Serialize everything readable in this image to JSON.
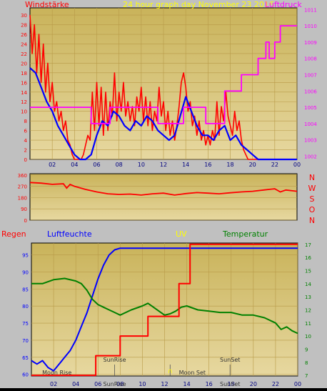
{
  "colors": {
    "wind_red": "#ff0000",
    "wind_blue": "#0000ff",
    "pressure_magenta": "#ff00ff",
    "title_yellow": "#ffff00",
    "humidity_blue": "#0000ff",
    "uv_yellow": "#ffff00",
    "temp_green": "#008000",
    "rain_red": "#ff0000",
    "dir_red": "#ff0000",
    "panel_bg": "#d2b45c"
  },
  "chart_data": [
    {
      "type": "line",
      "title": "24 hour graph day  November 23 2016",
      "left_label": "Windstärke",
      "right_label": "Luftdruck",
      "xtick_labels": [
        "02",
        "04",
        "06",
        "08",
        "10",
        "12",
        "14",
        "16",
        "18",
        "20",
        "22",
        "00"
      ],
      "yleft_ticks": [
        0,
        2,
        4,
        6,
        8,
        10,
        12,
        14,
        16,
        18,
        20,
        22,
        24,
        26,
        28,
        30
      ],
      "yright_ticks": [
        1002,
        1003,
        1004,
        1005,
        1006,
        1007,
        1008,
        1009,
        1010,
        1011
      ],
      "xlim": [
        0,
        24
      ],
      "ylim_left": [
        0,
        31.5
      ],
      "ylim_right": [
        1001.8,
        1011.1
      ],
      "series": [
        {
          "axis": "left",
          "style": "gust",
          "x": [
            0,
            0.2,
            0.4,
            0.6,
            0.8,
            1,
            1.2,
            1.4,
            1.6,
            1.8,
            2,
            2.2,
            2.4,
            2.6,
            2.8,
            3,
            3.2,
            3.4,
            3.6,
            3.8,
            4,
            4.2,
            4.4,
            4.6,
            4.8,
            5,
            5.2,
            5.4,
            5.6,
            5.8,
            6,
            6.2,
            6.4,
            6.6,
            6.8,
            7,
            7.2,
            7.4,
            7.6,
            7.8,
            8,
            8.2,
            8.4,
            8.6,
            8.8,
            9,
            9.2,
            9.4,
            9.6,
            9.8,
            10,
            10.2,
            10.4,
            10.6,
            10.8,
            11,
            11.2,
            11.4,
            11.6,
            11.8,
            12,
            12.2,
            12.4,
            12.6,
            12.8,
            13,
            13.2,
            13.4,
            13.6,
            13.8,
            14,
            14.2,
            14.4,
            14.6,
            14.8,
            15,
            15.2,
            15.4,
            15.6,
            15.8,
            16,
            16.2,
            16.4,
            16.6,
            16.8,
            17,
            17.2,
            17.4,
            17.6,
            17.8,
            18,
            18.2,
            18.4,
            18.6,
            18.8,
            19,
            19.2,
            19.4,
            19.6,
            19.8,
            20,
            20.2,
            20.4,
            20.6,
            20.8,
            21,
            21.2,
            21.4,
            21.6,
            21.8,
            22,
            22.2,
            22.4,
            22.6,
            22.8,
            23,
            23.2,
            23.4,
            23.6,
            23.8,
            24
          ],
          "values": [
            30,
            22,
            28,
            18,
            26,
            16,
            24,
            14,
            20,
            12,
            16,
            10,
            12,
            8,
            10,
            6,
            8,
            4,
            3,
            1,
            0,
            0,
            0,
            0,
            1,
            3,
            5,
            4,
            14,
            6,
            16,
            7,
            15,
            5,
            14,
            6,
            12,
            9,
            18,
            8,
            14,
            10,
            16,
            9,
            12,
            8,
            11,
            7,
            13,
            10,
            15,
            8,
            13,
            7,
            12,
            6,
            10,
            8,
            15,
            9,
            12,
            6,
            10,
            5,
            8,
            4,
            7,
            11,
            16,
            18,
            15,
            10,
            12,
            7,
            9,
            5,
            8,
            4,
            6,
            3,
            5,
            3,
            6,
            4,
            12,
            5,
            11,
            8,
            14,
            9,
            7,
            5,
            10,
            6,
            8,
            4,
            2,
            1,
            0,
            0,
            0,
            0,
            0,
            0,
            0,
            0,
            0,
            0,
            0,
            0,
            0,
            0,
            0,
            0,
            0,
            0,
            0,
            0,
            0,
            0,
            0
          ]
        },
        {
          "axis": "left",
          "style": "average",
          "x": [
            0,
            0.5,
            1,
            1.5,
            2,
            2.5,
            3,
            3.5,
            4,
            4.5,
            5,
            5.5,
            6,
            6.5,
            7,
            7.5,
            8,
            8.5,
            9,
            9.5,
            10,
            10.5,
            11,
            11.5,
            12,
            12.5,
            13,
            13.5,
            14,
            14.5,
            15,
            15.5,
            16,
            16.5,
            17,
            17.5,
            18,
            18.5,
            19,
            19.5,
            20,
            20.5,
            21,
            21.5,
            22,
            22.5,
            23,
            23.5,
            24
          ],
          "values": [
            19,
            18,
            15,
            12,
            10,
            7,
            5,
            3,
            1,
            0,
            0,
            1,
            5,
            8,
            7,
            10,
            9,
            7,
            6,
            8,
            7,
            9,
            8,
            6,
            5,
            4,
            5,
            9,
            13,
            10,
            7,
            5,
            5,
            4,
            6,
            7,
            4,
            5,
            3,
            2,
            1,
            0,
            0,
            0,
            0,
            0,
            0,
            0,
            0
          ]
        },
        {
          "axis": "right",
          "style": "pressure",
          "x": [
            0,
            5.5,
            5.5,
            7.2,
            7.2,
            11.5,
            11.5,
            13.8,
            13.8,
            15.8,
            15.8,
            17.5,
            17.5,
            19,
            19,
            20.5,
            20.5,
            21.2,
            21.2,
            21.5,
            21.5,
            22,
            22,
            22.5,
            22.5,
            24
          ],
          "values": [
            1005,
            1005,
            1004,
            1004,
            1005,
            1005,
            1004,
            1004,
            1005,
            1005,
            1004,
            1004,
            1006,
            1006,
            1007,
            1007,
            1008,
            1008,
            1009,
            1009,
            1008,
            1008,
            1009,
            1009,
            1010,
            1010
          ]
        }
      ]
    },
    {
      "type": "line",
      "right_labels": [
        "N",
        "W",
        "S",
        "O",
        "N"
      ],
      "ytick_labels": [
        "360",
        "270",
        "180",
        "90",
        "0"
      ],
      "yticks": [
        360,
        270,
        180,
        90,
        0
      ],
      "ylim": [
        0,
        370
      ],
      "xlim": [
        0,
        24
      ],
      "series": [
        {
          "x": [
            0,
            1,
            2,
            3,
            3.3,
            3.6,
            4,
            5,
            6,
            7,
            8,
            9,
            10,
            11,
            12,
            13,
            14,
            15,
            16,
            17,
            18,
            19,
            20,
            21,
            22,
            22.5,
            23,
            24
          ],
          "values": [
            300,
            295,
            285,
            290,
            255,
            285,
            270,
            245,
            225,
            210,
            205,
            208,
            200,
            210,
            215,
            200,
            212,
            220,
            215,
            210,
            218,
            225,
            230,
            240,
            250,
            225,
            240,
            230
          ]
        }
      ]
    },
    {
      "type": "line",
      "labels": {
        "rain": "Regen",
        "humidity": "Luftfeuchte",
        "uv": "UV",
        "temp": "Temperatur"
      },
      "xtick_labels": [
        "02",
        "04",
        "06",
        "08",
        "10",
        "12",
        "14",
        "16",
        "18",
        "20",
        "22",
        "00"
      ],
      "yleft_ticks": [
        60,
        65,
        70,
        75,
        80,
        85,
        90,
        95
      ],
      "yright_ticks": [
        7,
        8,
        9,
        10,
        11,
        12,
        13,
        14,
        15,
        16,
        17
      ],
      "ylim_left": [
        59.5,
        98.5
      ],
      "ylim_right": [
        6.95,
        17.1
      ],
      "xlim": [
        0,
        24
      ],
      "astro_labels": [
        {
          "text": "Moon Rise",
          "x": 2.3,
          "row": "bottom"
        },
        {
          "text": "SunRise",
          "x": 7.5,
          "row": "top"
        },
        {
          "text": "SunRise",
          "x": 7.5,
          "row": "axis"
        },
        {
          "text": "Moon Set",
          "x": 14.5,
          "row": "bottom"
        },
        {
          "text": "SunSet",
          "x": 17.9,
          "row": "top"
        },
        {
          "text": "SunSet",
          "x": 17.9,
          "row": "axis"
        }
      ],
      "markers": [
        7.5,
        12.5,
        17.9
      ],
      "series": [
        {
          "key": "humidity",
          "axis": "left",
          "x": [
            0,
            0.5,
            1,
            1.5,
            2,
            2.5,
            3,
            3.5,
            4,
            4.5,
            5,
            5.5,
            6,
            6.5,
            7,
            7.5,
            8,
            8.5,
            9,
            10,
            12,
            14,
            16,
            18,
            20,
            22,
            24
          ],
          "values": [
            64,
            63,
            64,
            62,
            61,
            63,
            65,
            67,
            70,
            74,
            78,
            83,
            88,
            92,
            95,
            96.5,
            97,
            97,
            97,
            97,
            97,
            97,
            97,
            97,
            97,
            97,
            97
          ]
        },
        {
          "key": "temp",
          "axis": "right",
          "x": [
            0,
            1,
            2,
            3,
            4,
            4.5,
            5,
            5.5,
            6,
            6.5,
            7,
            7.5,
            8,
            9,
            10,
            10.5,
            11,
            11.5,
            12,
            12.5,
            13,
            13.5,
            14,
            15,
            16,
            17,
            18,
            19,
            20,
            21,
            22,
            22.5,
            23,
            23.5,
            24
          ],
          "values": [
            14,
            14,
            14.3,
            14.4,
            14.2,
            14,
            13.5,
            12.8,
            12.4,
            12.2,
            12,
            11.8,
            11.6,
            12,
            12.3,
            12.5,
            12.2,
            11.9,
            11.6,
            11.7,
            11.9,
            12.2,
            12.3,
            12,
            11.9,
            11.8,
            11.8,
            11.6,
            11.6,
            11.4,
            11,
            10.5,
            10.7,
            10.4,
            10.2
          ]
        },
        {
          "key": "rain",
          "axis": "right",
          "x": [
            0,
            5.8,
            5.8,
            8,
            8,
            10.5,
            10.5,
            13.3,
            13.3,
            14.3,
            14.3,
            24
          ],
          "values": [
            7,
            7,
            8.5,
            8.5,
            10,
            10,
            11.5,
            11.5,
            14,
            14,
            17,
            17
          ]
        }
      ]
    }
  ]
}
